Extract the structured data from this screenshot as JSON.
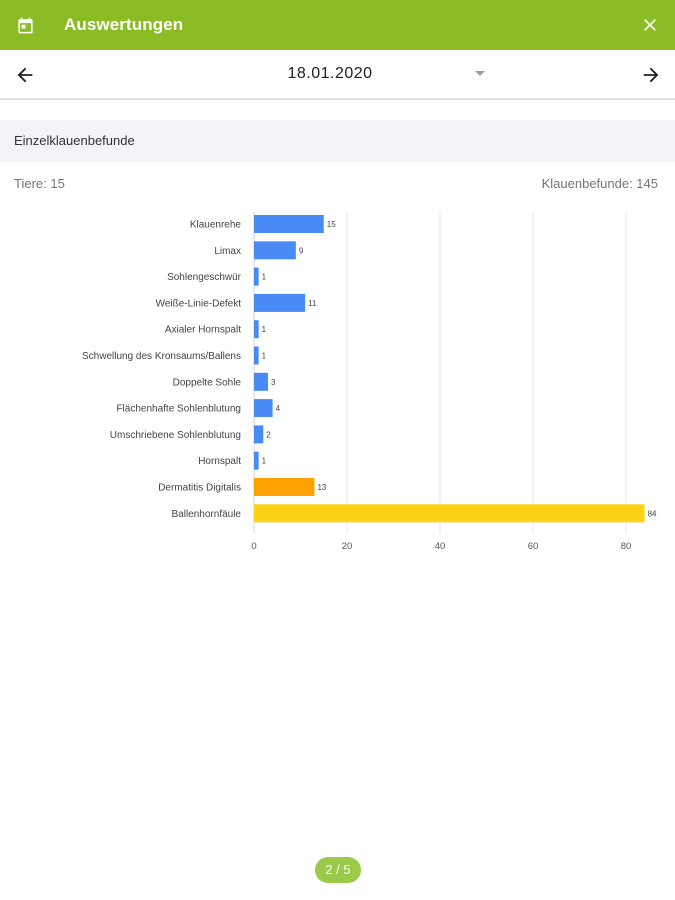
{
  "appbar": {
    "title": "Auswertungen",
    "calendar_icon": "calendar-icon",
    "close_icon": "close-icon",
    "background": "#8bbb25"
  },
  "datebar": {
    "date": "18.01.2020",
    "prev_icon": "arrow-left-icon",
    "next_icon": "arrow-right-icon",
    "dropdown_icon": "dropdown-caret-icon"
  },
  "section": {
    "title": "Einzelklauenbefunde",
    "animals_label": "Tiere: 15",
    "findings_label": "Klauenbefunde: 145"
  },
  "chart_data": {
    "type": "bar",
    "orientation": "horizontal",
    "categories": [
      "Klauenrehe",
      "Limax",
      "Sohlengeschwür",
      "Weiße-Linie-Defekt",
      "Axialer Hornspalt",
      "Schwellung des Kronsaums/Ballens",
      "Doppelte Sohle",
      "Flächenhafte Sohlenblutung",
      "Umschriebene Sohlenblutung",
      "Hornspalt",
      "Dermatitis Digitalis",
      "Ballenhornfäule"
    ],
    "values": [
      15,
      9,
      1,
      11,
      1,
      1,
      3,
      4,
      2,
      1,
      13,
      84
    ],
    "colors": [
      "#4a8af4",
      "#4a8af4",
      "#4a8af4",
      "#4a8af4",
      "#4a8af4",
      "#4a8af4",
      "#4a8af4",
      "#4a8af4",
      "#4a8af4",
      "#4a8af4",
      "#ff9f00",
      "#fcd116"
    ],
    "xticks": [
      0,
      20,
      40,
      60,
      80
    ],
    "xlim": [
      0,
      85
    ],
    "grid": true
  },
  "pager": {
    "label": "2 / 5"
  }
}
